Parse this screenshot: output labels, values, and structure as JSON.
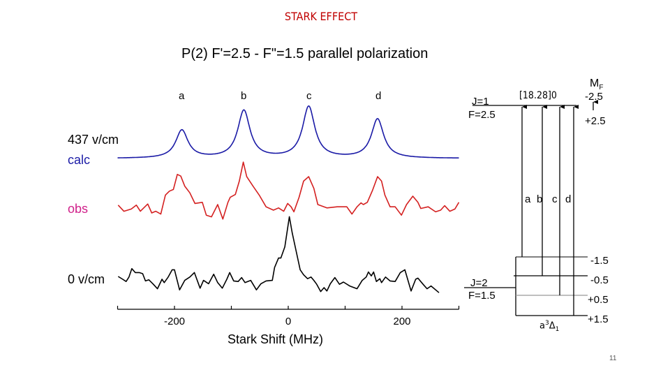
{
  "slide": {
    "title": "STARK EFFECT",
    "page_number": "11",
    "title_color": "#c00000"
  },
  "chart_data": {
    "type": "line",
    "title": "P(2) F'=2.5 - F\"=1.5 parallel polarization",
    "xlabel": "Stark Shift (MHz)",
    "ylabel": "",
    "xlim": [
      -300,
      300
    ],
    "xticks": [
      -300,
      -200,
      -100,
      0,
      100,
      200,
      300
    ],
    "xtick_labels": [
      "-200",
      "0",
      "200"
    ],
    "xtick_label_values": [
      -200,
      0,
      200
    ],
    "y_units": "arbitrary (no y axis)",
    "grid": false,
    "field_label": "437 v/cm",
    "peak_labels": [
      "a",
      "b",
      "c",
      "d"
    ],
    "series": [
      {
        "name": "calc",
        "color": "#1a1aa6",
        "form": "lorentzian peaks",
        "peaks": [
          {
            "label": "a",
            "x": -187,
            "height": 0.5
          },
          {
            "label": "b",
            "x": -78,
            "height": 0.85
          },
          {
            "label": "c",
            "x": 36,
            "height": 0.92
          },
          {
            "label": "d",
            "x": 157,
            "height": 0.7
          }
        ],
        "hwhm": 13,
        "x_range": [
          -300,
          300
        ]
      },
      {
        "name": "obs",
        "color": "#d42020",
        "label_color": "#d0208a",
        "x": [
          -299,
          -289,
          -276,
          -267,
          -260,
          -247,
          -240,
          -233,
          -224,
          -216,
          -209,
          -202,
          -195,
          -189,
          -182,
          -173,
          -164,
          -151,
          -144,
          -135,
          -124,
          -115,
          -106,
          -102,
          -93,
          -86,
          -79,
          -73,
          -62,
          -51,
          -39,
          -26,
          -17,
          -8,
          -1,
          5,
          10,
          19,
          27,
          36,
          45,
          52,
          68,
          86,
          103,
          112,
          121,
          128,
          132,
          139,
          148,
          157,
          164,
          170,
          179,
          188,
          199,
          208,
          219,
          228,
          233,
          246,
          259,
          268,
          275,
          284,
          293,
          300
        ],
        "y": [
          0.24,
          0.13,
          0.17,
          0.24,
          0.13,
          0.26,
          0.1,
          0.13,
          0.08,
          0.42,
          0.49,
          0.52,
          0.79,
          0.76,
          0.58,
          0.46,
          0.27,
          0.29,
          0.06,
          0.03,
          0.25,
          -0.01,
          0.29,
          0.38,
          0.43,
          0.67,
          1.01,
          0.75,
          0.58,
          0.42,
          0.21,
          0.15,
          0.19,
          0.13,
          0.27,
          0.21,
          0.12,
          0.38,
          0.67,
          0.75,
          0.54,
          0.25,
          0.19,
          0.21,
          0.21,
          0.08,
          0.21,
          0.28,
          0.25,
          0.29,
          0.5,
          0.75,
          0.67,
          0.42,
          0.21,
          0.21,
          0.06,
          0.25,
          0.4,
          0.29,
          0.18,
          0.21,
          0.12,
          0.15,
          0.23,
          0.13,
          0.17,
          0.29
        ]
      },
      {
        "name": "0 v/cm",
        "color": "#000000",
        "x": [
          -299,
          -291,
          -285,
          -280,
          -275,
          -269,
          -262,
          -256,
          -251,
          -245,
          -238,
          -230,
          -222,
          -218,
          -211,
          -204,
          -200,
          -191,
          -182,
          -173,
          -165,
          -155,
          -149,
          -140,
          -131,
          -124,
          -116,
          -108,
          -103,
          -96,
          -88,
          -82,
          -76,
          -66,
          -56,
          -48,
          -39,
          -28,
          -24,
          -17,
          -13,
          -6,
          2,
          7,
          14,
          21,
          27,
          34,
          40,
          45,
          50,
          57,
          63,
          68,
          74,
          82,
          90,
          97,
          108,
          121,
          130,
          137,
          141,
          146,
          150,
          155,
          161,
          164,
          171,
          179,
          188,
          197,
          205,
          210,
          216,
          224,
          228,
          237,
          244,
          251,
          265
        ],
        "y": [
          0.3,
          0.25,
          0.21,
          0.29,
          0.44,
          0.37,
          0.37,
          0.35,
          0.22,
          0.24,
          0.17,
          0.08,
          0.25,
          0.19,
          0.29,
          0.42,
          0.42,
          0.06,
          0.23,
          0.29,
          0.37,
          0.09,
          0.23,
          0.17,
          0.34,
          0.19,
          0.09,
          0.25,
          0.37,
          0.22,
          0.21,
          0.28,
          0.19,
          0.23,
          0.06,
          0.17,
          0.22,
          0.23,
          0.46,
          0.63,
          0.63,
          0.83,
          1.37,
          1.08,
          0.75,
          0.42,
          0.33,
          0.26,
          0.29,
          0.23,
          0.16,
          0.03,
          0.1,
          0.04,
          0.17,
          0.28,
          0.16,
          0.2,
          0.13,
          0.08,
          0.23,
          0.29,
          0.38,
          0.31,
          0.38,
          0.21,
          0.26,
          0.19,
          0.29,
          0.22,
          0.21,
          0.37,
          0.42,
          0.25,
          0.04,
          0.25,
          0.27,
          0.16,
          0.08,
          0.13,
          0.01
        ]
      }
    ]
  },
  "diagram": {
    "upper_state": "[18.28]0",
    "upper_J": "J=1",
    "upper_F": "F=2.5",
    "mf_header": "M",
    "mf_sub": "F",
    "mf_top": "-2.5",
    "mf_bottom": "+2.5",
    "lower_J": "J=2",
    "lower_F": "F=1.5",
    "lower_state": "a",
    "lower_state_sup": "3",
    "lower_state_greek": "Δ",
    "lower_state_sub": "1",
    "transitions": [
      "a",
      "b",
      "c",
      "d"
    ],
    "lower_mf": [
      "-1.5",
      "-0.5",
      "+0.5",
      "+1.5"
    ]
  }
}
